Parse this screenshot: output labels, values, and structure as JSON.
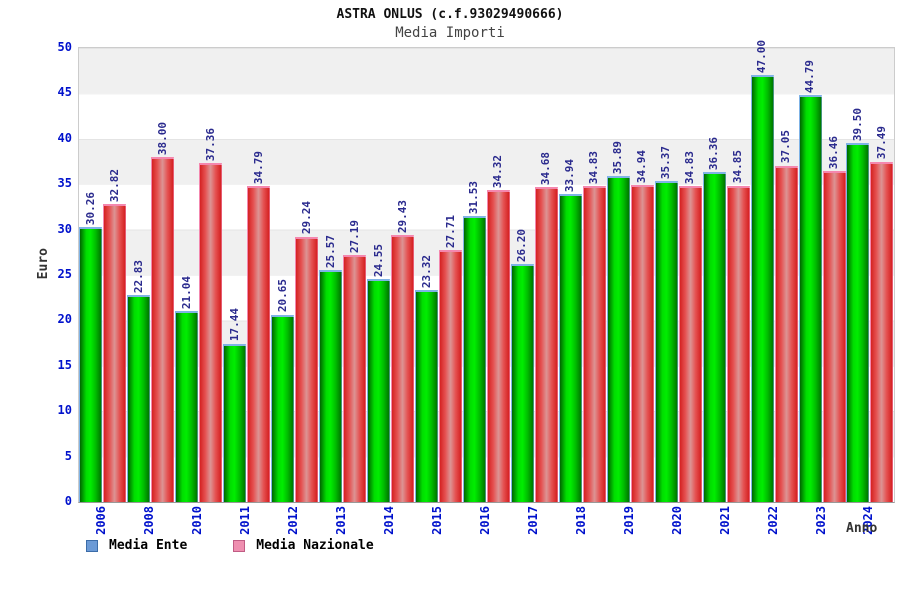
{
  "header": {
    "title": "ASTRA ONLUS (c.f.93029490666)",
    "subtitle": "Media Importi"
  },
  "chart_data": {
    "type": "bar",
    "title": "ASTRA ONLUS (c.f.93029490666)",
    "subtitle": "Media Importi",
    "xlabel": "Anno",
    "ylabel": "Euro",
    "ylim": [
      0,
      50
    ],
    "yticks": [
      0,
      5,
      10,
      15,
      20,
      25,
      30,
      35,
      40,
      45,
      50
    ],
    "grid": "horizontal-bands-every-5",
    "legend_position": "bottom-left",
    "categories": [
      "2006",
      "2008",
      "2010",
      "2011",
      "2012",
      "2013",
      "2014",
      "2015",
      "2016",
      "2017",
      "2018",
      "2019",
      "2020",
      "2021",
      "2022",
      "2023",
      "2024"
    ],
    "series": [
      {
        "name": "Media Ente",
        "values": [
          30.26,
          22.83,
          21.04,
          17.44,
          20.65,
          25.57,
          24.55,
          23.32,
          31.53,
          26.2,
          33.94,
          35.89,
          35.37,
          36.36,
          47.0,
          44.79,
          39.5
        ]
      },
      {
        "name": "Media Nazionale",
        "values": [
          32.82,
          38.0,
          37.36,
          34.79,
          29.24,
          27.19,
          29.43,
          27.71,
          34.32,
          34.68,
          34.83,
          34.94,
          34.83,
          34.85,
          37.05,
          36.46,
          37.49
        ]
      }
    ],
    "legend": [
      {
        "label": "Media Ente",
        "swatch_color": "#6b9ad6"
      },
      {
        "label": "Media Nazionale",
        "swatch_color": "#ef8fb0"
      }
    ],
    "value_label_format": "2-decimals",
    "value_label_rotation": "vertical"
  },
  "colors": {
    "ente_bar_mid": "#00ee00",
    "ente_bar_edge": "#006600",
    "ente_bar_cap": "#7fb3e6",
    "naz_bar_mid": "#dc9494",
    "naz_bar_edge": "#d42222",
    "naz_bar_cap": "#f487ae",
    "tick_label": "#0011cc",
    "value_label": "#2b2b8e",
    "band_gray": "#f0f0f0",
    "legend_ente_swatch": "#6b9ad6",
    "legend_naz_swatch": "#ef8fb0"
  }
}
